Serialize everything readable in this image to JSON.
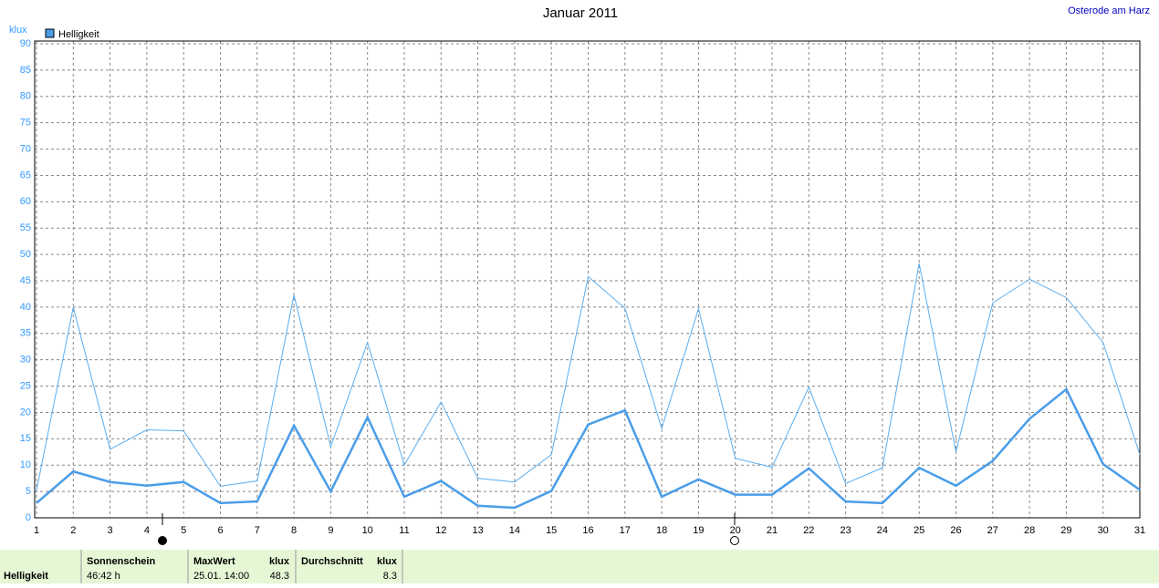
{
  "chart_data": {
    "type": "line",
    "title": "Januar 2011",
    "subtitle": "Osterode am Harz",
    "y_label": "klux",
    "x": [
      1,
      2,
      3,
      4,
      5,
      6,
      7,
      8,
      9,
      10,
      11,
      12,
      13,
      14,
      15,
      16,
      17,
      18,
      19,
      20,
      21,
      22,
      23,
      24,
      25,
      26,
      27,
      28,
      29,
      30,
      31
    ],
    "xlim": [
      1,
      31
    ],
    "xticks": [
      1,
      2,
      3,
      4,
      5,
      6,
      7,
      8,
      9,
      10,
      11,
      12,
      13,
      14,
      15,
      16,
      17,
      18,
      19,
      20,
      21,
      22,
      23,
      24,
      25,
      26,
      27,
      28,
      29,
      30,
      31
    ],
    "ylim": [
      0,
      90
    ],
    "yticks": [
      0,
      5,
      10,
      15,
      20,
      25,
      30,
      35,
      40,
      45,
      50,
      55,
      60,
      65,
      70,
      75,
      80,
      85,
      90
    ],
    "grid": true,
    "series": [
      {
        "name": "Helligkeit",
        "color": "#4a9de8",
        "values": [
          2.8,
          8.8,
          6.8,
          6.1,
          6.8,
          2.8,
          3.1,
          17.5,
          5,
          19.1,
          4,
          7,
          2.3,
          1.9,
          5.1,
          17.7,
          20.4,
          4,
          7.3,
          4.4,
          4.4,
          9.4,
          3.1,
          2.8,
          9.5,
          6.1,
          10.8,
          18.8,
          24.4,
          10.2,
          5.3
        ]
      },
      {
        "color": "#5aaef0",
        "values": [
          5.2,
          40,
          13,
          16.7,
          16.5,
          6,
          7,
          42.3,
          13.5,
          33.3,
          10,
          22,
          7.5,
          6.8,
          12,
          45.8,
          39.8,
          17,
          39.7,
          11.3,
          9.6,
          24.8,
          6.5,
          9.5,
          48.3,
          12.5,
          40.8,
          45.3,
          41.8,
          33.3,
          12
        ]
      }
    ]
  },
  "footer": {
    "row_label": "Helligkeit",
    "sun_label": "Sonnenschein",
    "sun_value": "46:42 h",
    "max_label": "MaxWert",
    "max_unit": "klux",
    "max_time": "25.01.  14:00",
    "max_value": "48.3",
    "avg_label": "Durchschnitt",
    "avg_unit": "klux",
    "avg_value": "8.3"
  }
}
